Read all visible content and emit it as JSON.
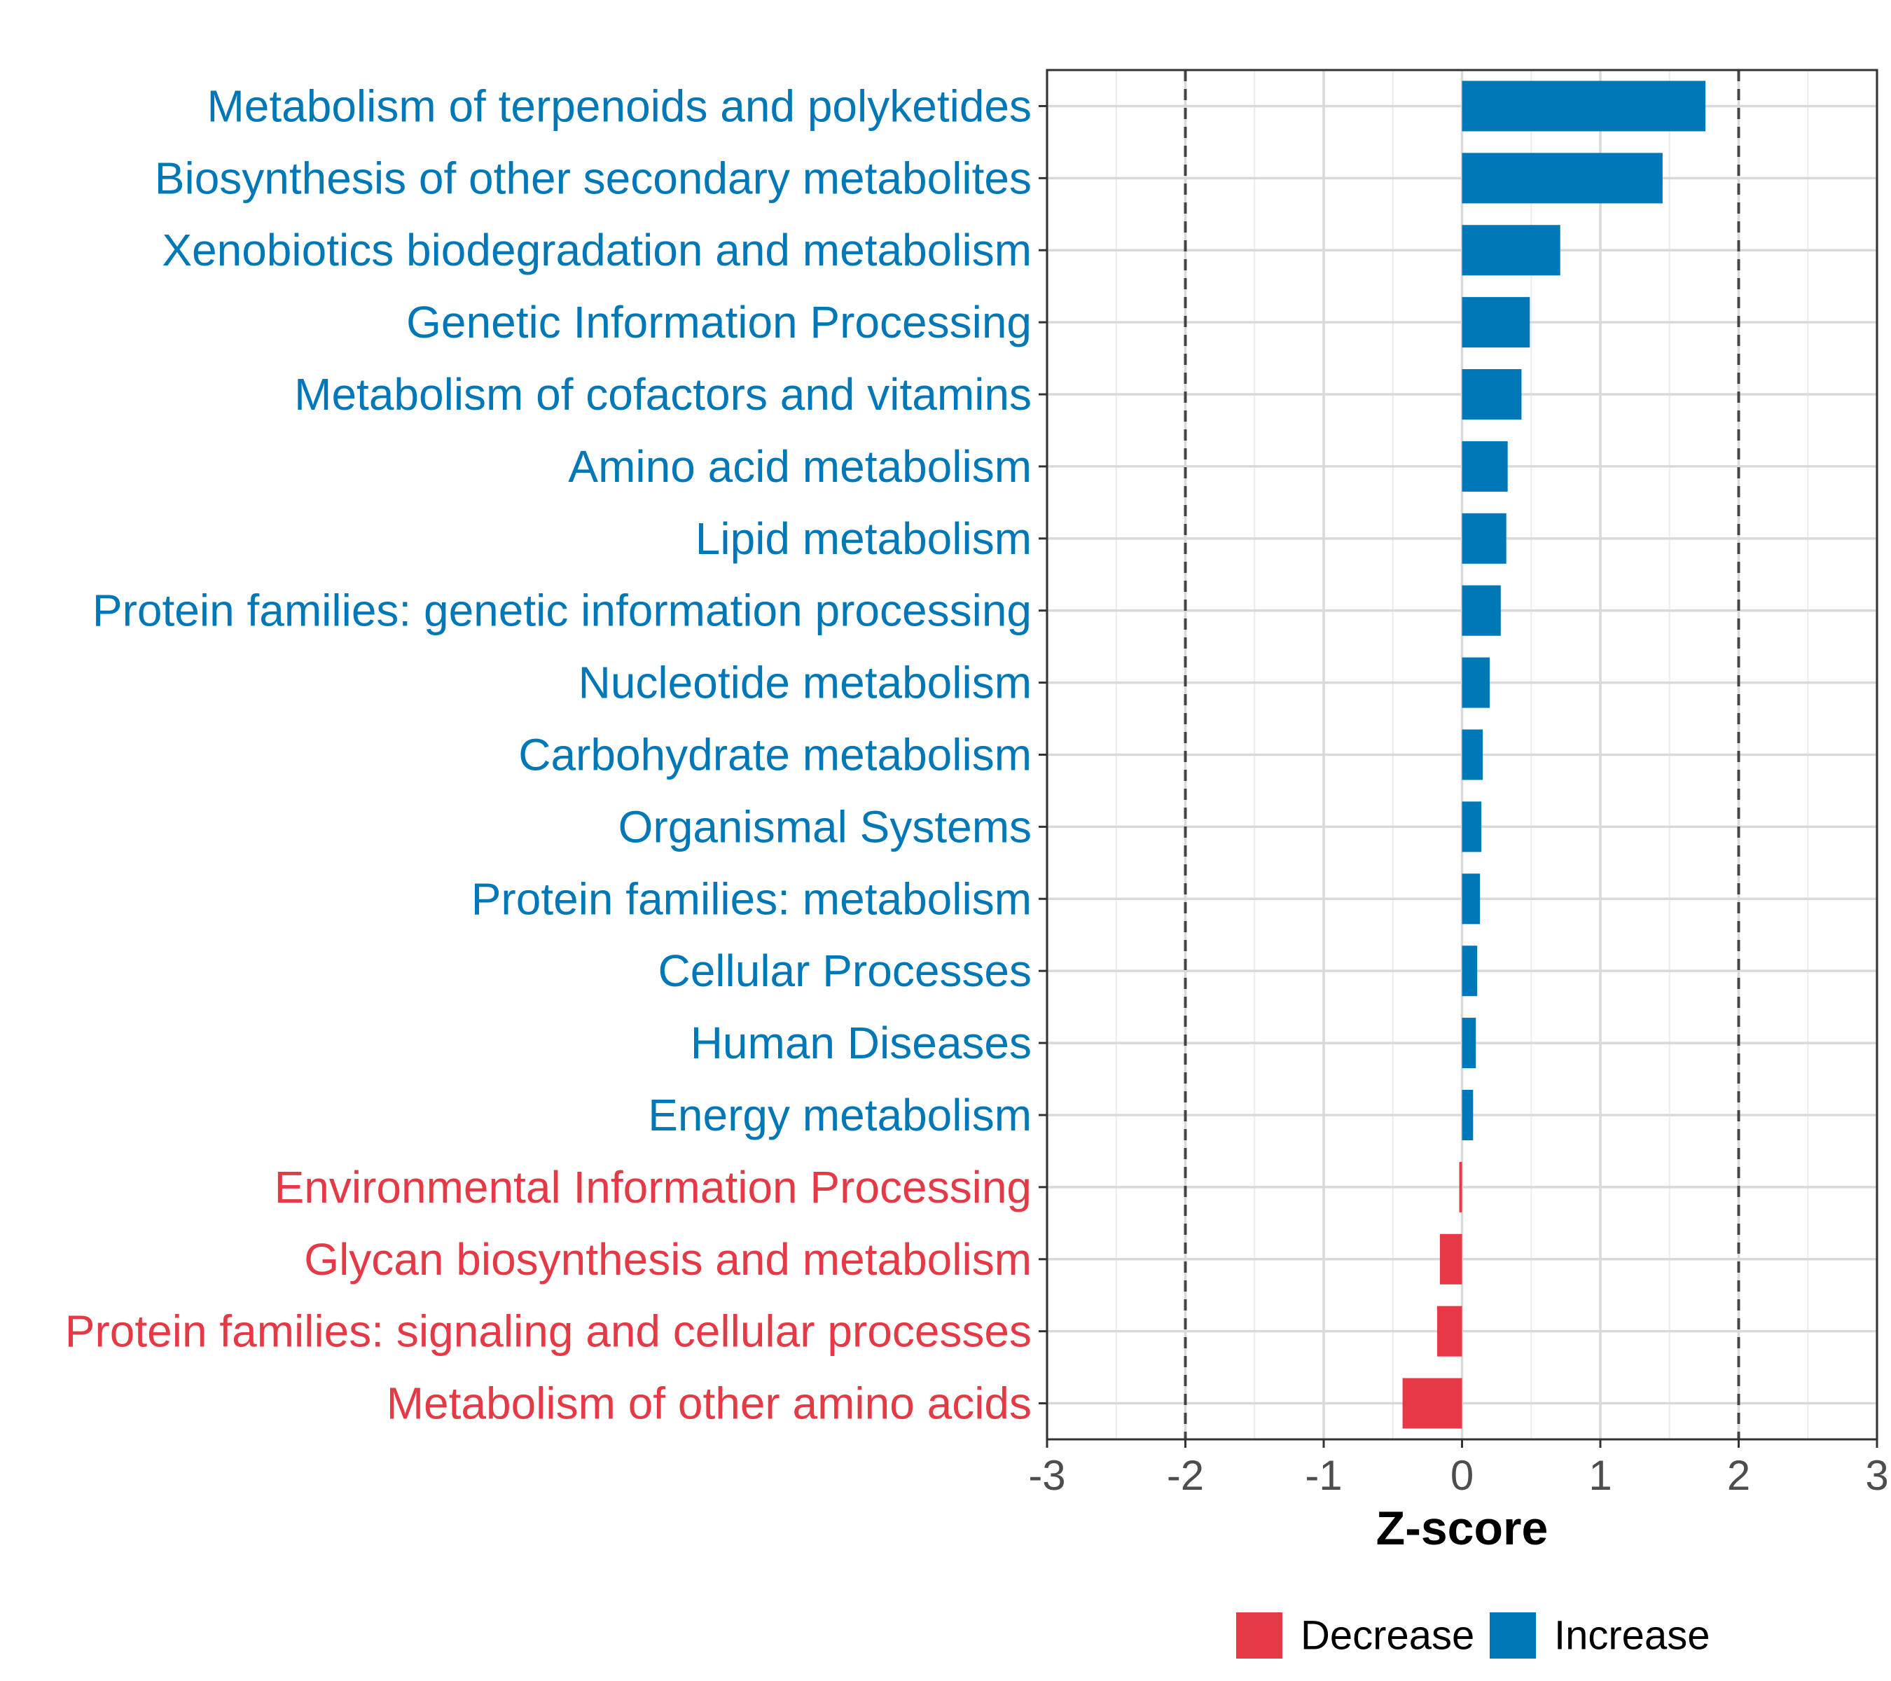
{
  "chart_data": {
    "type": "bar",
    "orientation": "horizontal",
    "title": "",
    "xlabel": "Z-score",
    "ylabel": "",
    "xlim": [
      -3,
      3
    ],
    "x_ticks": [
      -3,
      -2,
      -1,
      0,
      1,
      2,
      3
    ],
    "x_tick_labels": [
      "-3",
      "-2",
      "-1",
      "0",
      "1",
      "2",
      "3"
    ],
    "reference_lines": [
      -2,
      2
    ],
    "grid": true,
    "categories": [
      "Metabolism of terpenoids and polyketides",
      "Biosynthesis of other secondary metabolites",
      "Xenobiotics biodegradation and metabolism",
      "Genetic Information Processing",
      "Metabolism of cofactors and vitamins",
      "Amino acid metabolism",
      "Lipid metabolism",
      "Protein families: genetic information processing",
      "Nucleotide metabolism",
      "Carbohydrate metabolism",
      "Organismal Systems",
      "Protein families: metabolism",
      "Cellular Processes",
      "Human Diseases",
      "Energy metabolism",
      "Environmental Information Processing",
      "Glycan biosynthesis and metabolism",
      "Protein families: signaling and cellular processes",
      "Metabolism of other amino acids"
    ],
    "values": [
      1.76,
      1.45,
      0.71,
      0.49,
      0.43,
      0.33,
      0.32,
      0.28,
      0.2,
      0.15,
      0.14,
      0.13,
      0.11,
      0.1,
      0.08,
      -0.02,
      -0.16,
      -0.18,
      -0.43
    ],
    "groups": [
      "Increase",
      "Increase",
      "Increase",
      "Increase",
      "Increase",
      "Increase",
      "Increase",
      "Increase",
      "Increase",
      "Increase",
      "Increase",
      "Increase",
      "Increase",
      "Increase",
      "Increase",
      "Decrease",
      "Decrease",
      "Decrease",
      "Decrease"
    ],
    "legend": {
      "placement": "bottom",
      "entries": [
        {
          "name": "Decrease",
          "color": "#E63946"
        },
        {
          "name": "Increase",
          "color": "#0077B6"
        }
      ]
    },
    "colors": {
      "Decrease": "#E63946",
      "Increase": "#0077B6"
    }
  }
}
